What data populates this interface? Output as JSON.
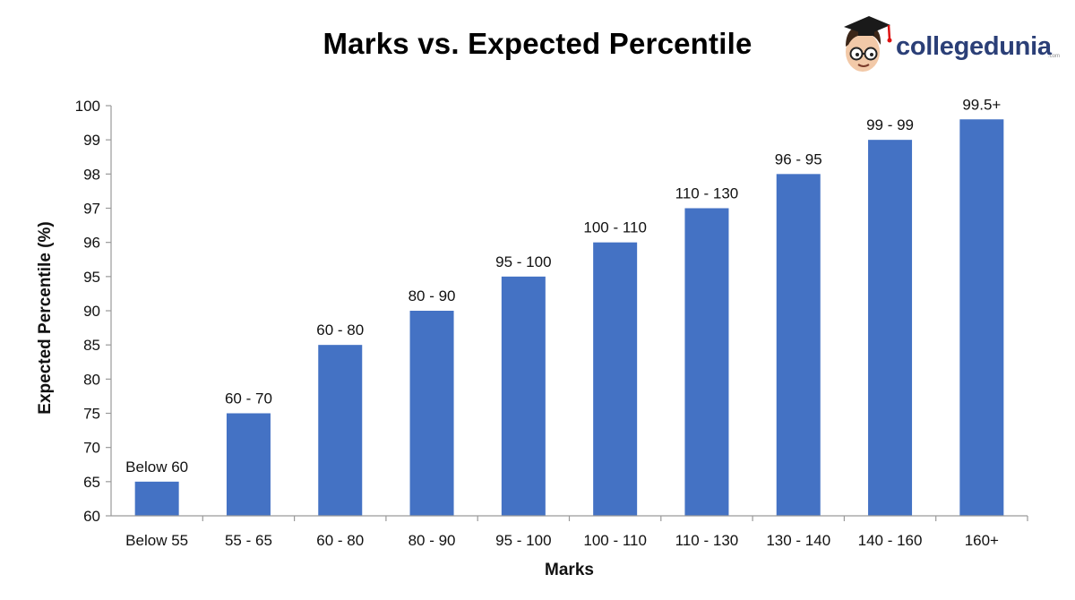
{
  "chart_data": {
    "type": "bar",
    "title": "Marks vs. Expected Percentile",
    "xlabel": "Marks",
    "ylabel": "Expected Percentile (%)",
    "categories": [
      "Below 55",
      "55 - 65",
      "60 - 80",
      "80 - 90",
      "95 - 100",
      "100 - 110",
      "110 - 130",
      "130 - 140",
      "140 - 160",
      "160+"
    ],
    "yticks": [
      "60",
      "65",
      "70",
      "75",
      "80",
      "85",
      "90",
      "95",
      "96",
      "97",
      "98",
      "99",
      "100"
    ],
    "values": [
      "65",
      "75",
      "85",
      "90",
      "95",
      "96",
      "97",
      "98",
      "99",
      "99.6"
    ],
    "data_labels": [
      "Below 60",
      "60 - 70",
      "60 - 80",
      "80 - 90",
      "95 - 100",
      "100 - 110",
      "110 - 130",
      "96 - 95",
      "99 - 99",
      "99.5+"
    ],
    "bar_color": "#4472c4",
    "grid": false,
    "legend": "none"
  },
  "logo": {
    "text": "collegedunia",
    "suffix": ".com"
  }
}
